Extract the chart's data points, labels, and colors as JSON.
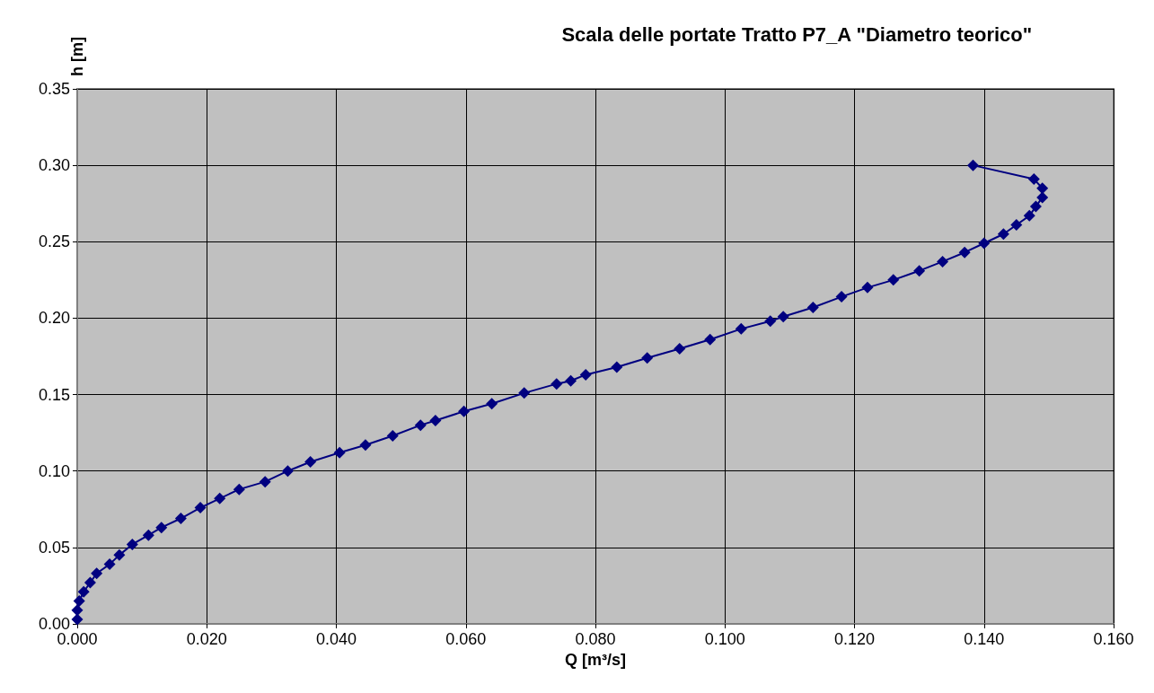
{
  "chart_data": {
    "type": "line",
    "title": "Scala delle portate Tratto P7_A \"Diametro teorico\"",
    "xlabel": "Q [m³/s]",
    "ylabel": "h [m]",
    "x": [
      0.0,
      0.0,
      0.0003,
      0.001,
      0.002,
      0.003,
      0.005,
      0.0065,
      0.0085,
      0.011,
      0.013,
      0.016,
      0.019,
      0.022,
      0.025,
      0.029,
      0.0325,
      0.036,
      0.0405,
      0.0445,
      0.0487,
      0.053,
      0.0553,
      0.0597,
      0.064,
      0.069,
      0.074,
      0.0762,
      0.0785,
      0.0833,
      0.088,
      0.093,
      0.0977,
      0.1025,
      0.107,
      0.109,
      0.1136,
      0.118,
      0.122,
      0.126,
      0.13,
      0.1336,
      0.137,
      0.14,
      0.143,
      0.145,
      0.147,
      0.148,
      0.149,
      0.149,
      0.1477,
      0.1383
    ],
    "series": [
      {
        "color": "#000080",
        "values": [
          0.003,
          0.009,
          0.015,
          0.021,
          0.027,
          0.033,
          0.039,
          0.045,
          0.052,
          0.058,
          0.063,
          0.069,
          0.076,
          0.082,
          0.088,
          0.093,
          0.1,
          0.106,
          0.112,
          0.117,
          0.123,
          0.13,
          0.133,
          0.139,
          0.144,
          0.151,
          0.157,
          0.159,
          0.163,
          0.168,
          0.174,
          0.18,
          0.186,
          0.193,
          0.198,
          0.201,
          0.207,
          0.214,
          0.22,
          0.225,
          0.231,
          0.237,
          0.243,
          0.249,
          0.255,
          0.261,
          0.267,
          0.273,
          0.279,
          0.285,
          0.291,
          0.3
        ]
      }
    ],
    "xlim": [
      0,
      0.16
    ],
    "xticks": [
      {
        "value": 0,
        "label": "0.000"
      },
      {
        "value": 0.02,
        "label": "0.020"
      },
      {
        "value": 0.04,
        "label": "0.040"
      },
      {
        "value": 0.06,
        "label": "0.060"
      },
      {
        "value": 0.08,
        "label": "0.080"
      },
      {
        "value": 0.1,
        "label": "0.100"
      },
      {
        "value": 0.12,
        "label": "0.120"
      },
      {
        "value": 0.14,
        "label": "0.140"
      },
      {
        "value": 0.16,
        "label": "0.160"
      }
    ],
    "ylim": [
      0,
      0.35
    ],
    "yticks": [
      {
        "value": 0,
        "label": "0.00"
      },
      {
        "value": 0.05,
        "label": "0.05"
      },
      {
        "value": 0.1,
        "label": "0.10"
      },
      {
        "value": 0.15,
        "label": "0.15"
      },
      {
        "value": 0.2,
        "label": "0.20"
      },
      {
        "value": 0.25,
        "label": "0.25"
      },
      {
        "value": 0.3,
        "label": "0.30"
      },
      {
        "value": 0.35,
        "label": "0.35"
      }
    ],
    "grid": true,
    "marker": "diamond",
    "line_style": "solid"
  }
}
